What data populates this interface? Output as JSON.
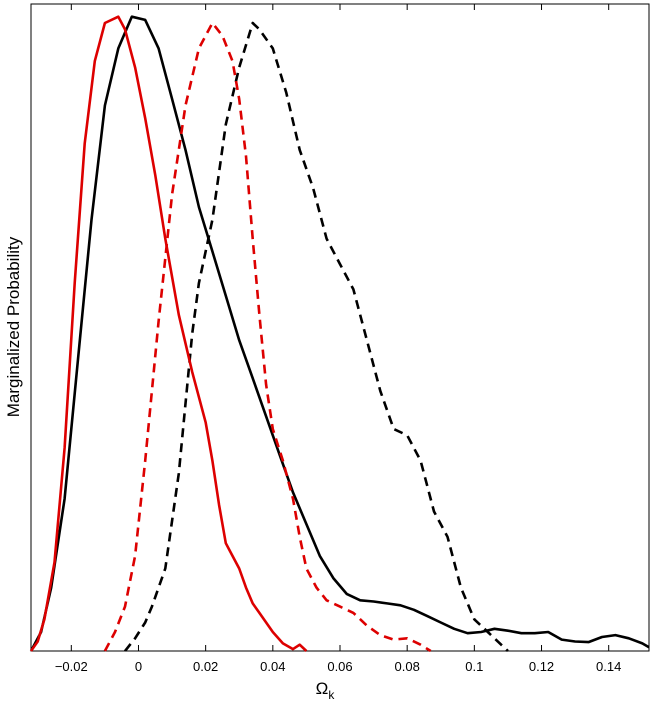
{
  "chart_data": {
    "type": "line",
    "title": "",
    "xlabel": "Ω",
    "xlabel_subscript": "k",
    "ylabel": "Marginalized Probability",
    "xlim": [
      -0.032,
      0.152
    ],
    "ylim": [
      0,
      1.02
    ],
    "x_ticks": [
      -0.02,
      0,
      0.02,
      0.04,
      0.06,
      0.08,
      0.1,
      0.12,
      0.14
    ],
    "x_tick_labels": [
      "−0.02",
      "0",
      "0.02",
      "0.04",
      "0.06",
      "0.08",
      "0.1",
      "0.12",
      "0.14"
    ],
    "y_ticks": [],
    "grid": false,
    "legend": "none",
    "series": [
      {
        "color": "#000000",
        "dash": "solid",
        "points": [
          [
            -0.032,
            0.0
          ],
          [
            -0.029,
            0.03
          ],
          [
            -0.026,
            0.1
          ],
          [
            -0.022,
            0.24
          ],
          [
            -0.018,
            0.46
          ],
          [
            -0.014,
            0.68
          ],
          [
            -0.01,
            0.86
          ],
          [
            -0.006,
            0.95
          ],
          [
            -0.002,
            1.0
          ],
          [
            0.002,
            0.995
          ],
          [
            0.006,
            0.95
          ],
          [
            0.01,
            0.87
          ],
          [
            0.014,
            0.79
          ],
          [
            0.018,
            0.7
          ],
          [
            0.022,
            0.63
          ],
          [
            0.026,
            0.56
          ],
          [
            0.03,
            0.49
          ],
          [
            0.034,
            0.43
          ],
          [
            0.038,
            0.37
          ],
          [
            0.042,
            0.31
          ],
          [
            0.046,
            0.25
          ],
          [
            0.05,
            0.2
          ],
          [
            0.054,
            0.15
          ],
          [
            0.058,
            0.115
          ],
          [
            0.062,
            0.09
          ],
          [
            0.066,
            0.08
          ],
          [
            0.07,
            0.078
          ],
          [
            0.074,
            0.075
          ],
          [
            0.078,
            0.072
          ],
          [
            0.082,
            0.065
          ],
          [
            0.086,
            0.055
          ],
          [
            0.09,
            0.045
          ],
          [
            0.094,
            0.035
          ],
          [
            0.098,
            0.028
          ],
          [
            0.102,
            0.03
          ],
          [
            0.106,
            0.035
          ],
          [
            0.11,
            0.032
          ],
          [
            0.114,
            0.028
          ],
          [
            0.118,
            0.028
          ],
          [
            0.122,
            0.03
          ],
          [
            0.126,
            0.018
          ],
          [
            0.13,
            0.015
          ],
          [
            0.134,
            0.014
          ],
          [
            0.138,
            0.022
          ],
          [
            0.142,
            0.025
          ],
          [
            0.146,
            0.02
          ],
          [
            0.15,
            0.012
          ],
          [
            0.152,
            0.006
          ]
        ]
      },
      {
        "color": "#000000",
        "dash": "dashed",
        "points": [
          [
            -0.004,
            0.0
          ],
          [
            -0.001,
            0.02
          ],
          [
            0.002,
            0.045
          ],
          [
            0.004,
            0.07
          ],
          [
            0.008,
            0.13
          ],
          [
            0.012,
            0.28
          ],
          [
            0.016,
            0.5
          ],
          [
            0.018,
            0.58
          ],
          [
            0.022,
            0.68
          ],
          [
            0.026,
            0.83
          ],
          [
            0.03,
            0.92
          ],
          [
            0.034,
            0.99
          ],
          [
            0.036,
            0.98
          ],
          [
            0.04,
            0.95
          ],
          [
            0.044,
            0.88
          ],
          [
            0.048,
            0.79
          ],
          [
            0.052,
            0.73
          ],
          [
            0.056,
            0.65
          ],
          [
            0.06,
            0.61
          ],
          [
            0.064,
            0.57
          ],
          [
            0.068,
            0.49
          ],
          [
            0.072,
            0.41
          ],
          [
            0.076,
            0.35
          ],
          [
            0.08,
            0.34
          ],
          [
            0.084,
            0.3
          ],
          [
            0.088,
            0.22
          ],
          [
            0.092,
            0.18
          ],
          [
            0.096,
            0.1
          ],
          [
            0.1,
            0.05
          ],
          [
            0.104,
            0.03
          ],
          [
            0.108,
            0.01
          ],
          [
            0.11,
            0.0
          ]
        ]
      },
      {
        "color": "#dd0000",
        "dash": "solid",
        "points": [
          [
            -0.032,
            0.0
          ],
          [
            -0.03,
            0.015
          ],
          [
            -0.028,
            0.05
          ],
          [
            -0.025,
            0.14
          ],
          [
            -0.022,
            0.32
          ],
          [
            -0.019,
            0.58
          ],
          [
            -0.016,
            0.8
          ],
          [
            -0.013,
            0.93
          ],
          [
            -0.01,
            0.99
          ],
          [
            -0.006,
            1.0
          ],
          [
            -0.004,
            0.98
          ],
          [
            -0.001,
            0.92
          ],
          [
            0.002,
            0.84
          ],
          [
            0.005,
            0.75
          ],
          [
            0.008,
            0.65
          ],
          [
            0.012,
            0.53
          ],
          [
            0.016,
            0.44
          ],
          [
            0.02,
            0.36
          ],
          [
            0.022,
            0.3
          ],
          [
            0.024,
            0.23
          ],
          [
            0.026,
            0.17
          ],
          [
            0.028,
            0.15
          ],
          [
            0.03,
            0.13
          ],
          [
            0.032,
            0.1
          ],
          [
            0.034,
            0.075
          ],
          [
            0.036,
            0.06
          ],
          [
            0.04,
            0.03
          ],
          [
            0.043,
            0.012
          ],
          [
            0.046,
            0.003
          ],
          [
            0.048,
            0.01
          ],
          [
            0.05,
            0.0
          ]
        ]
      },
      {
        "color": "#dd0000",
        "dash": "dashed",
        "points": [
          [
            -0.01,
            0.0
          ],
          [
            -0.007,
            0.03
          ],
          [
            -0.004,
            0.07
          ],
          [
            -0.001,
            0.15
          ],
          [
            0.002,
            0.3
          ],
          [
            0.006,
            0.52
          ],
          [
            0.01,
            0.72
          ],
          [
            0.014,
            0.86
          ],
          [
            0.018,
            0.95
          ],
          [
            0.022,
            0.99
          ],
          [
            0.025,
            0.97
          ],
          [
            0.028,
            0.93
          ],
          [
            0.03,
            0.87
          ],
          [
            0.032,
            0.78
          ],
          [
            0.034,
            0.65
          ],
          [
            0.036,
            0.53
          ],
          [
            0.038,
            0.42
          ],
          [
            0.04,
            0.35
          ],
          [
            0.043,
            0.3
          ],
          [
            0.046,
            0.24
          ],
          [
            0.048,
            0.18
          ],
          [
            0.05,
            0.13
          ],
          [
            0.053,
            0.1
          ],
          [
            0.056,
            0.08
          ],
          [
            0.06,
            0.07
          ],
          [
            0.064,
            0.06
          ],
          [
            0.068,
            0.04
          ],
          [
            0.072,
            0.025
          ],
          [
            0.076,
            0.018
          ],
          [
            0.08,
            0.02
          ],
          [
            0.084,
            0.01
          ],
          [
            0.087,
            0.0
          ]
        ]
      }
    ]
  }
}
